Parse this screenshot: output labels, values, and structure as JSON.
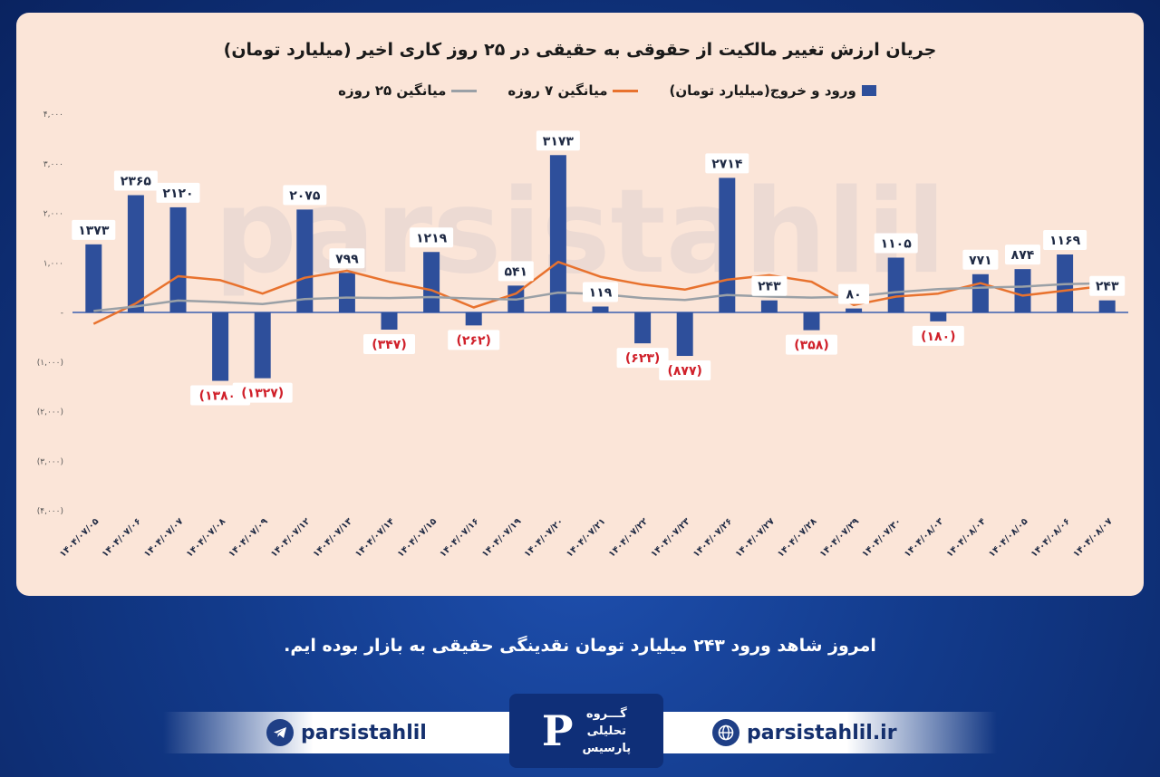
{
  "caption": "امروز شاهد ورود ۲۴۳ میلیارد تومان نقدینگی حقیقی به بازار بوده ایم.",
  "footer": {
    "telegram_handle": "parsistahlil",
    "website": "parsistahlil.ir",
    "logo_line1": "گـــروه",
    "logo_line2": "تحلیلی",
    "logo_line3": "پارسیس"
  },
  "chart_data": {
    "type": "bar",
    "title": "جریان ارزش تغییر مالکیت از حقوقی به حقیقی در ۲۵ روز کاری اخیر (میلیارد تومان)",
    "categories": [
      "۱۴۰۴/۰۷/۰۵",
      "۱۴۰۴/۰۷/۰۶",
      "۱۴۰۴/۰۷/۰۷",
      "۱۴۰۴/۰۷/۰۸",
      "۱۴۰۴/۰۷/۰۹",
      "۱۴۰۴/۰۷/۱۲",
      "۱۴۰۴/۰۷/۱۳",
      "۱۴۰۴/۰۷/۱۴",
      "۱۴۰۴/۰۷/۱۵",
      "۱۴۰۴/۰۷/۱۶",
      "۱۴۰۴/۰۷/۱۹",
      "۱۴۰۴/۰۷/۲۰",
      "۱۴۰۴/۰۷/۲۱",
      "۱۴۰۴/۰۷/۲۲",
      "۱۴۰۴/۰۷/۲۳",
      "۱۴۰۴/۰۷/۲۶",
      "۱۴۰۴/۰۷/۲۷",
      "۱۴۰۴/۰۷/۲۸",
      "۱۴۰۴/۰۷/۲۹",
      "۱۴۰۴/۰۷/۳۰",
      "۱۴۰۴/۰۸/۰۳",
      "۱۴۰۴/۰۸/۰۴",
      "۱۴۰۴/۰۸/۰۵",
      "۱۴۰۴/۰۸/۰۶",
      "۱۴۰۴/۰۸/۰۷"
    ],
    "series": [
      {
        "name": "ورود و خروج(میلیارد تومان)",
        "type": "bar",
        "color": "#2e4f9b",
        "values": [
          1373,
          2365,
          2120,
          -1380,
          -1327,
          2075,
          799,
          -347,
          1219,
          -262,
          541,
          3173,
          119,
          -623,
          -877,
          2714,
          243,
          -358,
          80,
          1105,
          -180,
          771,
          874,
          1169,
          243
        ],
        "labels": [
          "۱۳۷۳",
          "۲۳۶۵",
          "۲۱۲۰",
          "(۱۳۸۰)",
          "(۱۳۲۷)",
          "۲۰۷۵",
          "۷۹۹",
          "(۳۴۷)",
          "۱۲۱۹",
          "(۲۶۲)",
          "۵۴۱",
          "۳۱۷۳",
          "۱۱۹",
          "(۶۲۳)",
          "(۸۷۷)",
          "۲۷۱۴",
          "۲۴۳",
          "(۳۵۸)",
          "۸۰",
          "۱۱۰۵",
          "(۱۸۰)",
          "۷۷۱",
          "۸۷۴",
          "۱۱۶۹",
          "۲۴۳"
        ]
      },
      {
        "name": "میانگین ۷ روزه",
        "type": "line",
        "color": "#e8722e",
        "values": [
          -230,
          180,
          730,
          650,
          380,
          700,
          840,
          620,
          450,
          100,
          380,
          1020,
          720,
          560,
          460,
          660,
          750,
          620,
          150,
          320,
          380,
          590,
          340,
          440,
          540
        ]
      },
      {
        "name": "میانگین ۲۵ روزه",
        "type": "line",
        "color": "#9aa0a6",
        "values": [
          30,
          120,
          240,
          210,
          170,
          270,
          300,
          290,
          310,
          280,
          260,
          400,
          370,
          290,
          250,
          350,
          320,
          300,
          320,
          410,
          470,
          500,
          520,
          570,
          590
        ]
      }
    ],
    "ylim": [
      -4000,
      4000
    ],
    "yticks": [
      4000,
      3000,
      2000,
      1000,
      0,
      -1000,
      -2000,
      -3000,
      -4000
    ],
    "ytick_labels": [
      "۴,۰۰۰",
      "۳,۰۰۰",
      "۲,۰۰۰",
      "۱,۰۰۰",
      "-",
      "(۱,۰۰۰)",
      "(۲,۰۰۰)",
      "(۳,۰۰۰)",
      "(۴,۰۰۰)"
    ],
    "legend": "top-center",
    "grid": false
  }
}
